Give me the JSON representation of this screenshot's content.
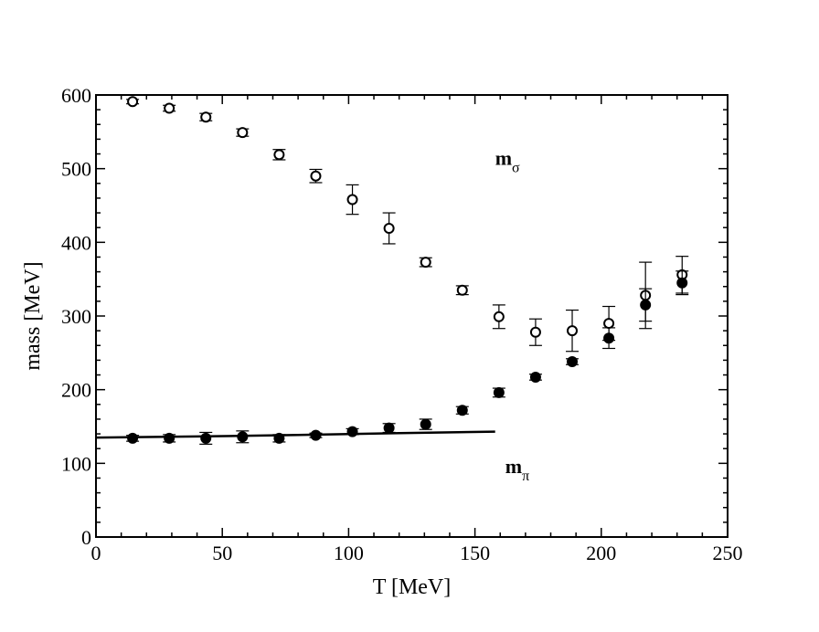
{
  "chart_data": {
    "type": "scatter",
    "xlabel": "T [MeV]",
    "ylabel": "mass [MeV]",
    "xlim": [
      0,
      250
    ],
    "ylim": [
      0,
      600
    ],
    "xticks": [
      "0",
      "50",
      "100",
      "150",
      "200",
      "250"
    ],
    "yticks": [
      "0",
      "100",
      "200",
      "300",
      "400",
      "500",
      "600"
    ],
    "series": [
      {
        "name": "m_sigma",
        "marker": "open-circle",
        "x": [
          14.5,
          29,
          43.5,
          58,
          72.5,
          87,
          101.5,
          116,
          130.5,
          145,
          159.5,
          174,
          188.5,
          203,
          217.5,
          232
        ],
        "y": [
          591,
          582,
          570,
          549,
          519,
          490,
          458,
          419,
          373,
          335,
          299,
          278,
          280,
          290,
          328,
          356
        ],
        "err": [
          3,
          4,
          5,
          5,
          7,
          9,
          20,
          21,
          6,
          6,
          16,
          18,
          28,
          23,
          45,
          25
        ]
      },
      {
        "name": "m_pi",
        "marker": "filled-circle",
        "x": [
          14.5,
          29,
          43.5,
          58,
          72.5,
          87,
          101.5,
          116,
          130.5,
          145,
          159.5,
          174,
          188.5,
          203,
          217.5,
          232
        ],
        "y": [
          134,
          134,
          134,
          136,
          134,
          138,
          143,
          148,
          153,
          172,
          196,
          217,
          238,
          270,
          315,
          345
        ],
        "err": [
          4,
          5,
          8,
          8,
          5,
          3,
          4,
          6,
          7,
          5,
          6,
          4,
          4,
          14,
          22,
          16
        ]
      },
      {
        "name": "m_pi fit",
        "type": "line",
        "x": [
          0,
          40,
          80,
          120,
          158
        ],
        "y": [
          135,
          136.5,
          138.5,
          141,
          143
        ]
      }
    ],
    "annotations": [
      {
        "text": "m",
        "subscript": "σ",
        "x": 158,
        "y": 505
      },
      {
        "text": "m",
        "subscript": "π",
        "x": 162,
        "y": 87
      }
    ]
  }
}
